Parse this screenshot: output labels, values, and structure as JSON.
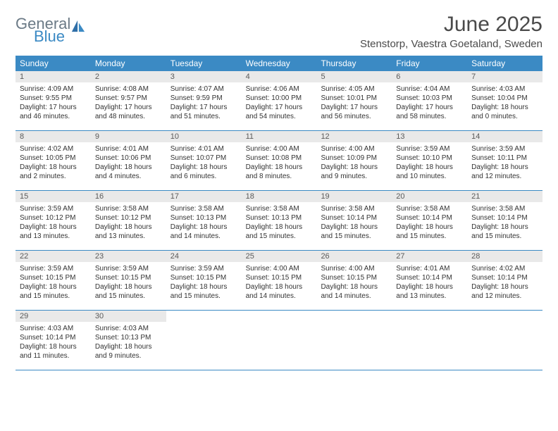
{
  "logo": {
    "general": "General",
    "blue": "Blue"
  },
  "header": {
    "month_title": "June 2025",
    "location": "Stenstorp, Vaestra Goetaland, Sweden"
  },
  "colors": {
    "accent": "#3b8ac4",
    "daynum_bg": "#e9e9e9",
    "text": "#333333"
  },
  "day_names": [
    "Sunday",
    "Monday",
    "Tuesday",
    "Wednesday",
    "Thursday",
    "Friday",
    "Saturday"
  ],
  "weeks": [
    [
      {
        "day": "1",
        "sunrise": "Sunrise: 4:09 AM",
        "sunset": "Sunset: 9:55 PM",
        "daylight": "Daylight: 17 hours and 46 minutes."
      },
      {
        "day": "2",
        "sunrise": "Sunrise: 4:08 AM",
        "sunset": "Sunset: 9:57 PM",
        "daylight": "Daylight: 17 hours and 48 minutes."
      },
      {
        "day": "3",
        "sunrise": "Sunrise: 4:07 AM",
        "sunset": "Sunset: 9:59 PM",
        "daylight": "Daylight: 17 hours and 51 minutes."
      },
      {
        "day": "4",
        "sunrise": "Sunrise: 4:06 AM",
        "sunset": "Sunset: 10:00 PM",
        "daylight": "Daylight: 17 hours and 54 minutes."
      },
      {
        "day": "5",
        "sunrise": "Sunrise: 4:05 AM",
        "sunset": "Sunset: 10:01 PM",
        "daylight": "Daylight: 17 hours and 56 minutes."
      },
      {
        "day": "6",
        "sunrise": "Sunrise: 4:04 AM",
        "sunset": "Sunset: 10:03 PM",
        "daylight": "Daylight: 17 hours and 58 minutes."
      },
      {
        "day": "7",
        "sunrise": "Sunrise: 4:03 AM",
        "sunset": "Sunset: 10:04 PM",
        "daylight": "Daylight: 18 hours and 0 minutes."
      }
    ],
    [
      {
        "day": "8",
        "sunrise": "Sunrise: 4:02 AM",
        "sunset": "Sunset: 10:05 PM",
        "daylight": "Daylight: 18 hours and 2 minutes."
      },
      {
        "day": "9",
        "sunrise": "Sunrise: 4:01 AM",
        "sunset": "Sunset: 10:06 PM",
        "daylight": "Daylight: 18 hours and 4 minutes."
      },
      {
        "day": "10",
        "sunrise": "Sunrise: 4:01 AM",
        "sunset": "Sunset: 10:07 PM",
        "daylight": "Daylight: 18 hours and 6 minutes."
      },
      {
        "day": "11",
        "sunrise": "Sunrise: 4:00 AM",
        "sunset": "Sunset: 10:08 PM",
        "daylight": "Daylight: 18 hours and 8 minutes."
      },
      {
        "day": "12",
        "sunrise": "Sunrise: 4:00 AM",
        "sunset": "Sunset: 10:09 PM",
        "daylight": "Daylight: 18 hours and 9 minutes."
      },
      {
        "day": "13",
        "sunrise": "Sunrise: 3:59 AM",
        "sunset": "Sunset: 10:10 PM",
        "daylight": "Daylight: 18 hours and 10 minutes."
      },
      {
        "day": "14",
        "sunrise": "Sunrise: 3:59 AM",
        "sunset": "Sunset: 10:11 PM",
        "daylight": "Daylight: 18 hours and 12 minutes."
      }
    ],
    [
      {
        "day": "15",
        "sunrise": "Sunrise: 3:59 AM",
        "sunset": "Sunset: 10:12 PM",
        "daylight": "Daylight: 18 hours and 13 minutes."
      },
      {
        "day": "16",
        "sunrise": "Sunrise: 3:58 AM",
        "sunset": "Sunset: 10:12 PM",
        "daylight": "Daylight: 18 hours and 13 minutes."
      },
      {
        "day": "17",
        "sunrise": "Sunrise: 3:58 AM",
        "sunset": "Sunset: 10:13 PM",
        "daylight": "Daylight: 18 hours and 14 minutes."
      },
      {
        "day": "18",
        "sunrise": "Sunrise: 3:58 AM",
        "sunset": "Sunset: 10:13 PM",
        "daylight": "Daylight: 18 hours and 15 minutes."
      },
      {
        "day": "19",
        "sunrise": "Sunrise: 3:58 AM",
        "sunset": "Sunset: 10:14 PM",
        "daylight": "Daylight: 18 hours and 15 minutes."
      },
      {
        "day": "20",
        "sunrise": "Sunrise: 3:58 AM",
        "sunset": "Sunset: 10:14 PM",
        "daylight": "Daylight: 18 hours and 15 minutes."
      },
      {
        "day": "21",
        "sunrise": "Sunrise: 3:58 AM",
        "sunset": "Sunset: 10:14 PM",
        "daylight": "Daylight: 18 hours and 15 minutes."
      }
    ],
    [
      {
        "day": "22",
        "sunrise": "Sunrise: 3:59 AM",
        "sunset": "Sunset: 10:15 PM",
        "daylight": "Daylight: 18 hours and 15 minutes."
      },
      {
        "day": "23",
        "sunrise": "Sunrise: 3:59 AM",
        "sunset": "Sunset: 10:15 PM",
        "daylight": "Daylight: 18 hours and 15 minutes."
      },
      {
        "day": "24",
        "sunrise": "Sunrise: 3:59 AM",
        "sunset": "Sunset: 10:15 PM",
        "daylight": "Daylight: 18 hours and 15 minutes."
      },
      {
        "day": "25",
        "sunrise": "Sunrise: 4:00 AM",
        "sunset": "Sunset: 10:15 PM",
        "daylight": "Daylight: 18 hours and 14 minutes."
      },
      {
        "day": "26",
        "sunrise": "Sunrise: 4:00 AM",
        "sunset": "Sunset: 10:15 PM",
        "daylight": "Daylight: 18 hours and 14 minutes."
      },
      {
        "day": "27",
        "sunrise": "Sunrise: 4:01 AM",
        "sunset": "Sunset: 10:14 PM",
        "daylight": "Daylight: 18 hours and 13 minutes."
      },
      {
        "day": "28",
        "sunrise": "Sunrise: 4:02 AM",
        "sunset": "Sunset: 10:14 PM",
        "daylight": "Daylight: 18 hours and 12 minutes."
      }
    ],
    [
      {
        "day": "29",
        "sunrise": "Sunrise: 4:03 AM",
        "sunset": "Sunset: 10:14 PM",
        "daylight": "Daylight: 18 hours and 11 minutes."
      },
      {
        "day": "30",
        "sunrise": "Sunrise: 4:03 AM",
        "sunset": "Sunset: 10:13 PM",
        "daylight": "Daylight: 18 hours and 9 minutes."
      },
      {
        "blank": true
      },
      {
        "blank": true
      },
      {
        "blank": true
      },
      {
        "blank": true
      },
      {
        "blank": true
      }
    ]
  ]
}
